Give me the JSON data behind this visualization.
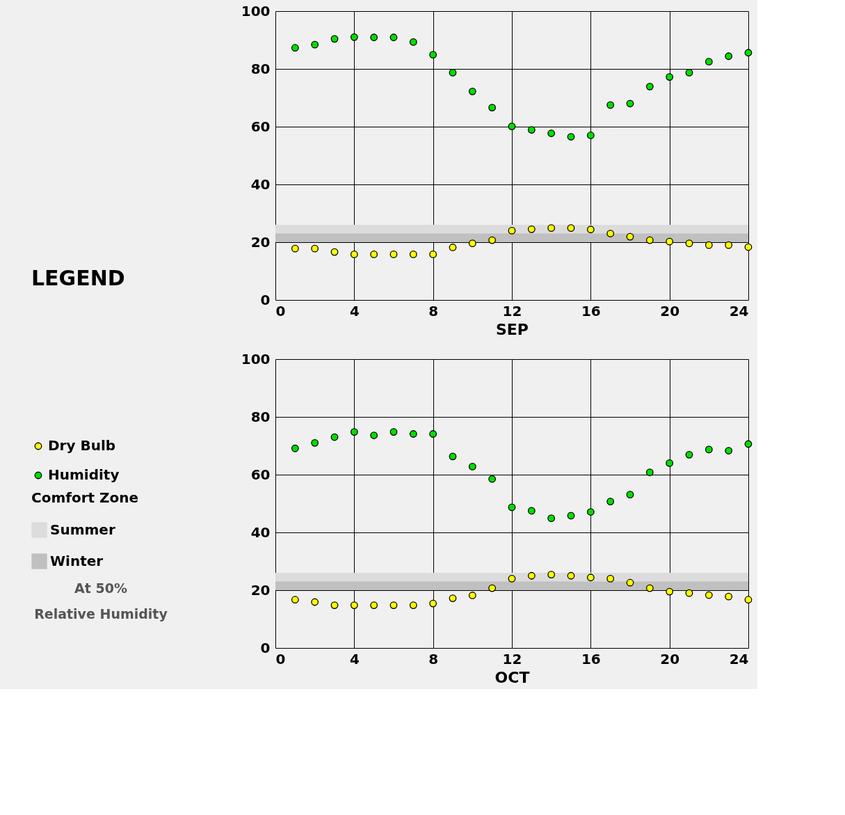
{
  "chart_data": [
    {
      "type": "scatter",
      "xlabel": "SEP",
      "legend": "left",
      "legend_title": "LEGEND",
      "marker": "circle",
      "grid": true,
      "annotations": [
        "Comfort Zone",
        "At 50%",
        "Relative Humidity"
      ],
      "x": [
        1,
        2,
        3,
        4,
        5,
        6,
        7,
        8,
        9,
        10,
        11,
        12,
        13,
        14,
        15,
        16,
        17,
        18,
        19,
        20,
        21,
        22,
        23,
        24
      ],
      "xlim": [
        0,
        24
      ],
      "xticks": [
        0,
        4,
        8,
        12,
        16,
        20,
        24
      ],
      "ylim": [
        0,
        100
      ],
      "yticks": [
        0,
        20,
        40,
        60,
        80,
        100
      ],
      "bands": [
        {
          "axis": "y",
          "from": 20,
          "to": 26,
          "label": "Summer",
          "color": "#dcdcdc"
        },
        {
          "axis": "y",
          "from": 20,
          "to": 23,
          "label": "Winter",
          "color": "#c0c0c0"
        }
      ],
      "series": [
        {
          "name": "Dry Bulb",
          "color": "#ffff00",
          "values": [
            17.8,
            17.8,
            16.6,
            15.8,
            15.8,
            15.8,
            15.8,
            15.8,
            18.2,
            19.6,
            20.7,
            24,
            24.5,
            24.9,
            24.9,
            24.4,
            23,
            21.9,
            20.7,
            20.2,
            19.6,
            19,
            19,
            18.3
          ]
        },
        {
          "name": "Humidity",
          "color": "#00e000",
          "values": [
            87.3,
            88.4,
            90.4,
            91,
            90.9,
            90.9,
            89.3,
            84.9,
            78.7,
            72.2,
            66.6,
            60.1,
            58.9,
            57.7,
            56.5,
            57,
            67.5,
            68,
            73.9,
            77.2,
            78.7,
            82.5,
            84.4,
            85.6
          ]
        }
      ]
    },
    {
      "type": "scatter",
      "xlabel": "OCT",
      "marker": "circle",
      "grid": true,
      "x": [
        1,
        2,
        3,
        4,
        5,
        6,
        7,
        8,
        9,
        10,
        11,
        12,
        13,
        14,
        15,
        16,
        17,
        18,
        19,
        20,
        21,
        22,
        23,
        24
      ],
      "xlim": [
        0,
        24
      ],
      "xticks": [
        0,
        4,
        8,
        12,
        16,
        20,
        24
      ],
      "ylim": [
        0,
        100
      ],
      "yticks": [
        0,
        20,
        40,
        60,
        80,
        100
      ],
      "bands": [
        {
          "axis": "y",
          "from": 20,
          "to": 26,
          "color": "#dcdcdc"
        },
        {
          "axis": "y",
          "from": 20,
          "to": 23,
          "color": "#c0c0c0"
        }
      ],
      "series": [
        {
          "color": "#ffff00",
          "values": [
            16.7,
            15.9,
            14.8,
            14.8,
            14.8,
            14.8,
            14.8,
            15.4,
            17.2,
            18.2,
            20.7,
            24,
            25,
            25.4,
            25,
            24.4,
            24,
            22.6,
            20.7,
            19.5,
            19,
            18.3,
            17.8,
            16.7
          ]
        },
        {
          "color": "#00e000",
          "values": [
            69.1,
            71,
            73,
            74.8,
            73.6,
            74.8,
            74.1,
            74.1,
            66.3,
            62.8,
            58.5,
            48.7,
            47.5,
            44.9,
            45.8,
            47.1,
            50.7,
            53.1,
            60.8,
            64,
            66.9,
            68.7,
            68.3,
            70.6
          ]
        }
      ]
    }
  ]
}
